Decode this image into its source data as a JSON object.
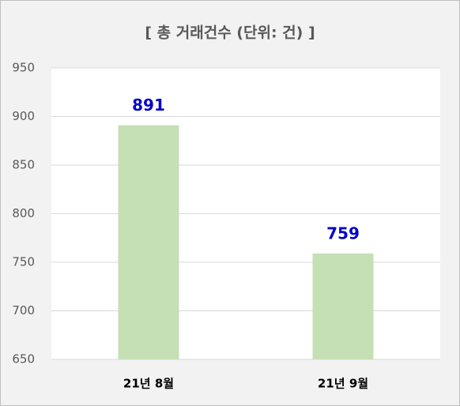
{
  "chart_data": {
    "type": "bar",
    "title": "[ 총 거래건수 (단위: 건) ]",
    "categories": [
      "21년 8월",
      "21년 9월"
    ],
    "values": [
      891,
      759
    ],
    "color": "#c5e0b4",
    "value_label_color": "#0000cc",
    "ylim": [
      650,
      950
    ],
    "yticks": [
      650,
      700,
      750,
      800,
      850,
      900,
      950
    ],
    "grid": true
  }
}
